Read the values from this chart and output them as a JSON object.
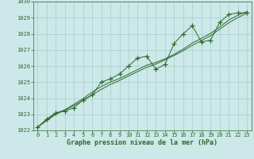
{
  "x": [
    0,
    1,
    2,
    3,
    4,
    5,
    6,
    7,
    8,
    9,
    10,
    11,
    12,
    13,
    14,
    15,
    16,
    17,
    18,
    19,
    20,
    21,
    22,
    23
  ],
  "y_main": [
    1022.2,
    1022.7,
    1023.1,
    1023.2,
    1023.4,
    1023.9,
    1024.2,
    1025.0,
    1025.2,
    1025.5,
    1026.0,
    1026.5,
    1026.6,
    1025.8,
    1026.1,
    1027.4,
    1028.0,
    1028.5,
    1027.5,
    1027.6,
    1028.7,
    1029.2,
    1029.3,
    1029.3
  ],
  "y_smooth1": [
    1022.2,
    1022.6,
    1023.0,
    1023.25,
    1023.55,
    1023.85,
    1024.2,
    1024.55,
    1024.85,
    1025.1,
    1025.38,
    1025.65,
    1025.92,
    1026.12,
    1026.38,
    1026.65,
    1026.95,
    1027.28,
    1027.58,
    1027.88,
    1028.28,
    1028.68,
    1029.0,
    1029.28
  ],
  "y_smooth2": [
    1022.2,
    1022.65,
    1023.05,
    1023.28,
    1023.62,
    1023.98,
    1024.38,
    1024.72,
    1025.0,
    1025.22,
    1025.5,
    1025.78,
    1026.05,
    1026.22,
    1026.45,
    1026.72,
    1027.05,
    1027.42,
    1027.72,
    1028.02,
    1028.42,
    1028.85,
    1029.15,
    1029.38
  ],
  "ylim": [
    1022,
    1030
  ],
  "yticks": [
    1022,
    1023,
    1024,
    1025,
    1026,
    1027,
    1028,
    1029,
    1030
  ],
  "xlim": [
    -0.5,
    23.5
  ],
  "xticks": [
    0,
    1,
    2,
    3,
    4,
    5,
    6,
    7,
    8,
    9,
    10,
    11,
    12,
    13,
    14,
    15,
    16,
    17,
    18,
    19,
    20,
    21,
    22,
    23
  ],
  "xlabel": "Graphe pression niveau de la mer (hPa)",
  "line_color": "#2d6a2d",
  "bg_color": "#cce8e8",
  "grid_color": "#aacccc",
  "tick_label_color": "#2d6a2d",
  "xlabel_color": "#2d6a2d",
  "marker": "+",
  "marker_size": 4,
  "tick_fontsize": 5,
  "xlabel_fontsize": 6
}
